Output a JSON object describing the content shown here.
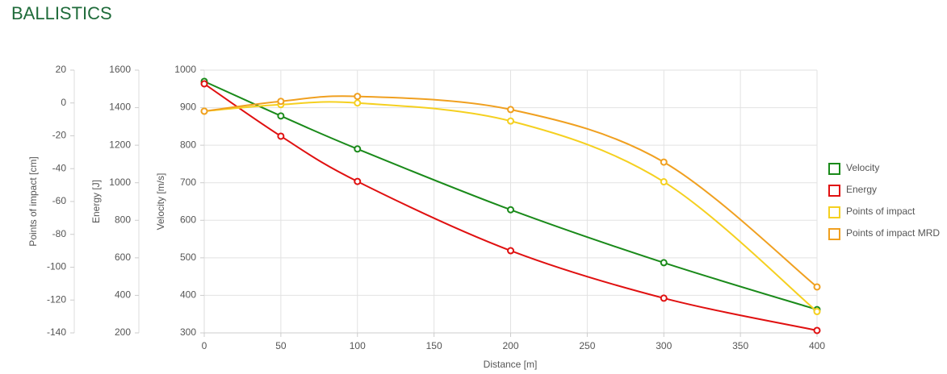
{
  "title": "BALLISTICS",
  "chart_data": {
    "type": "line",
    "x_label": "Distance [m]",
    "x": [
      0,
      50,
      100,
      200,
      300,
      400
    ],
    "xlim": [
      0,
      400
    ],
    "xticks": [
      0,
      50,
      100,
      150,
      200,
      250,
      300,
      350,
      400
    ],
    "grid": true,
    "legend": "right",
    "y_axes": [
      {
        "title": "Velocity [m/s]",
        "ylim": [
          300,
          1000
        ],
        "yticks": [
          300,
          400,
          500,
          600,
          700,
          800,
          900,
          1000
        ]
      },
      {
        "title": "Energy [J]",
        "ylim": [
          200,
          1600
        ],
        "yticks": [
          200,
          400,
          600,
          800,
          1000,
          1200,
          1400,
          1600
        ]
      },
      {
        "title": "Points of impact [cm]",
        "ylim": [
          -140,
          20
        ],
        "yticks": [
          -140,
          -120,
          -100,
          -80,
          -60,
          -40,
          -20,
          0,
          20
        ]
      }
    ],
    "series": [
      {
        "name": "Velocity",
        "color": "#1a8a1a",
        "axis": 0,
        "values": [
          970,
          878,
          790,
          628,
          487,
          362
        ]
      },
      {
        "name": "Energy",
        "color": "#e01010",
        "axis": 1,
        "values": [
          1527,
          1248,
          1007,
          638,
          385,
          213
        ]
      },
      {
        "name": "Points of impact",
        "color": "#f5d020",
        "axis": 2,
        "values": [
          -5,
          -1,
          0,
          -11,
          -48,
          -127
        ]
      },
      {
        "name": "Points of impact MRD",
        "color": "#f0a020",
        "axis": 2,
        "values": [
          -5,
          1,
          4,
          -4,
          -36,
          -112
        ]
      }
    ]
  }
}
